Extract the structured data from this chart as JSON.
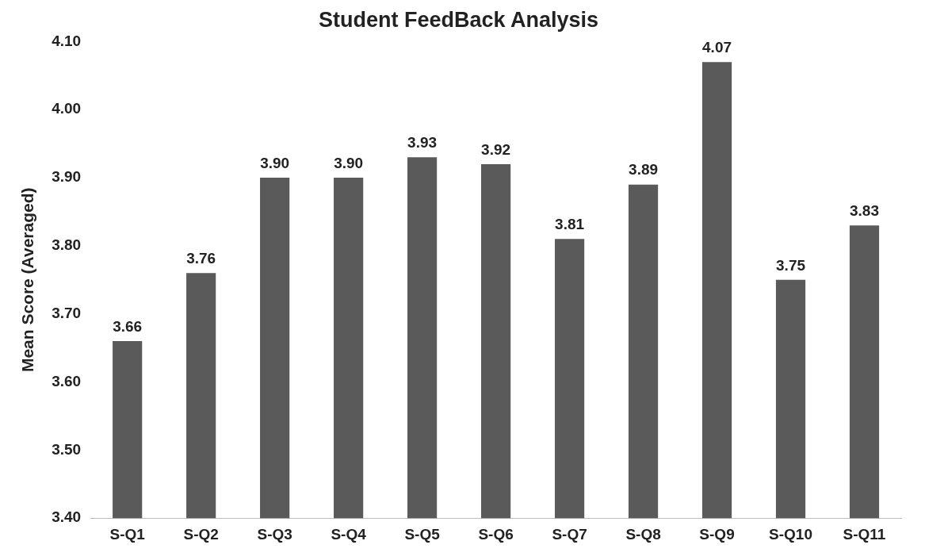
{
  "chart_data": {
    "type": "bar",
    "title": "Student FeedBack Analysis",
    "ylabel": "Mean Score (Averaged)",
    "categories": [
      "S-Q1",
      "S-Q2",
      "S-Q3",
      "S-Q4",
      "S-Q5",
      "S-Q6",
      "S-Q7",
      "S-Q8",
      "S-Q9",
      "S-Q10",
      "S-Q11"
    ],
    "values": [
      3.66,
      3.76,
      3.9,
      3.9,
      3.93,
      3.92,
      3.81,
      3.89,
      4.07,
      3.75,
      3.83
    ],
    "color": "#5a5a5a",
    "ylim": [
      3.4,
      4.1
    ],
    "yticks": [
      {
        "value": 3.4,
        "label": "3.40"
      },
      {
        "value": 3.5,
        "label": "3.50"
      },
      {
        "value": 3.6,
        "label": "3.60"
      },
      {
        "value": 3.7,
        "label": "3.70"
      },
      {
        "value": 3.8,
        "label": "3.80"
      },
      {
        "value": 3.9,
        "label": "3.90"
      },
      {
        "value": 4.0,
        "label": "4.00"
      },
      {
        "value": 4.1,
        "label": "4.10"
      }
    ],
    "value_labels": [
      "3.66",
      "3.76",
      "3.90",
      "3.90",
      "3.93",
      "3.92",
      "3.81",
      "3.89",
      "4.07",
      "3.75",
      "3.83"
    ],
    "grid": false,
    "legend": false
  }
}
